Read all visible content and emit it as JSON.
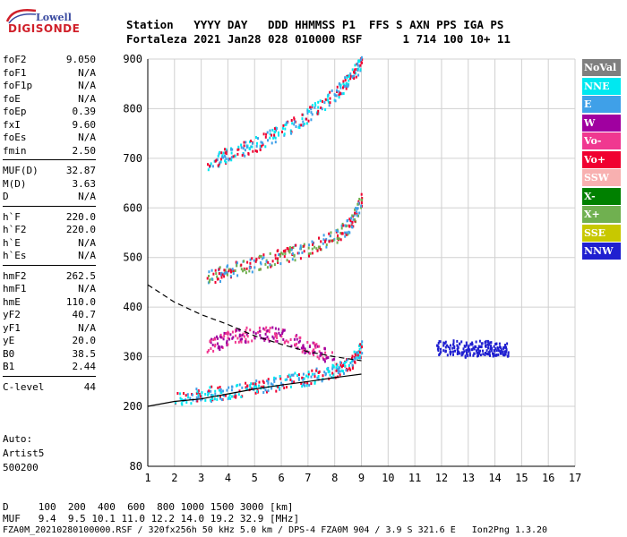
{
  "logo": {
    "top": "Lowell",
    "main": "DIGISONDE"
  },
  "header": {
    "row1": "Station   YYYY DAY   DDD HHMMSS P1  FFS S AXN PPS IGA PS",
    "row2": "Fortaleza 2021 Jan28 028 010000 RSF      1 714 100 10+ 11"
  },
  "params": {
    "group1": [
      {
        "key": "foF2",
        "value": "9.050"
      },
      {
        "key": "foF1",
        "value": "N/A"
      },
      {
        "key": "foF1p",
        "value": "N/A"
      },
      {
        "key": "foE",
        "value": "N/A"
      },
      {
        "key": "foEp",
        "value": "0.39"
      },
      {
        "key": "fxI",
        "value": "9.60"
      },
      {
        "key": "foEs",
        "value": "N/A"
      },
      {
        "key": "fmin",
        "value": "2.50"
      }
    ],
    "group2": [
      {
        "key": "MUF(D)",
        "value": "32.87"
      },
      {
        "key": "M(D)",
        "value": "3.63"
      },
      {
        "key": "D",
        "value": "N/A"
      }
    ],
    "group3": [
      {
        "key": "h`F",
        "value": "220.0"
      },
      {
        "key": "h`F2",
        "value": "220.0"
      },
      {
        "key": "h`E",
        "value": "N/A"
      },
      {
        "key": "h`Es",
        "value": "N/A"
      }
    ],
    "group4": [
      {
        "key": "hmF2",
        "value": "262.5"
      },
      {
        "key": "hmF1",
        "value": "N/A"
      },
      {
        "key": "hmE",
        "value": "110.0"
      },
      {
        "key": "yF2",
        "value": "40.7"
      },
      {
        "key": "yF1",
        "value": "N/A"
      },
      {
        "key": "yE",
        "value": "20.0"
      },
      {
        "key": "B0",
        "value": "38.5"
      },
      {
        "key": "B1",
        "value": "2.44"
      }
    ],
    "group5": [
      {
        "key": "C-level",
        "value": "44"
      }
    ]
  },
  "auto": {
    "line1": "Auto:",
    "line2": "Artist5",
    "line3": "500200"
  },
  "legend": [
    {
      "label": "NoVal",
      "color": "#7f7f7f"
    },
    {
      "label": "NNE",
      "color": "#00e8f0"
    },
    {
      "label": "E",
      "color": "#3fa0e8"
    },
    {
      "label": "W",
      "color": "#a000a0"
    },
    {
      "label": "Vo-",
      "color": "#f03890"
    },
    {
      "label": "Vo+",
      "color": "#f00030"
    },
    {
      "label": "SSW",
      "color": "#f8b0b0"
    },
    {
      "label": "X-",
      "color": "#008000"
    },
    {
      "label": "X+",
      "color": "#70b050"
    },
    {
      "label": "SSE",
      "color": "#c8c800"
    },
    {
      "label": "NNW",
      "color": "#2020d0"
    }
  ],
  "footer": {
    "d_row": "D     100  200  400  600  800 1000 1500 3000 [km]",
    "muf_row": "MUF   9.4  9.5 10.1 11.0 12.2 14.0 19.2 32.9 [MHz]",
    "file_row": "FZA0M_20210280100000.RSF / 320fx256h 50 kHz 5.0 km / DPS-4 FZA0M 904 / 3.9 S 321.6 E   Ion2Png 1.3.20"
  },
  "chart_data": {
    "type": "scatter",
    "title": "",
    "xlabel": "",
    "ylabel": "",
    "x_ticks": [
      1,
      2,
      3,
      4,
      5,
      6,
      7,
      8,
      9,
      10,
      11,
      12,
      13,
      14,
      15,
      16,
      17
    ],
    "y_ticks": [
      80,
      200,
      300,
      400,
      500,
      600,
      700,
      800,
      900
    ],
    "xlim": [
      1,
      17
    ],
    "ylim_upper": [
      200,
      900
    ],
    "ylim_bottom": [
      80,
      200
    ],
    "grid": true,
    "legend_placement": "right",
    "echo_traces": [
      {
        "name": "E",
        "points": [
          [
            2.0,
            215
          ],
          [
            3,
            225
          ],
          [
            4,
            232
          ],
          [
            5,
            240
          ],
          [
            6,
            250
          ],
          [
            7,
            260
          ],
          [
            8,
            275
          ],
          [
            8.6,
            290
          ],
          [
            9.0,
            320
          ]
        ],
        "colors": [
          "#f00030",
          "#3fa0e8",
          "#00e8f0"
        ]
      },
      {
        "name": "2F",
        "points": [
          [
            3.2,
            460
          ],
          [
            4,
            475
          ],
          [
            5,
            490
          ],
          [
            6,
            505
          ],
          [
            7,
            520
          ],
          [
            8,
            545
          ],
          [
            8.6,
            570
          ],
          [
            9.0,
            620
          ]
        ],
        "colors": [
          "#f00030",
          "#3fa0e8",
          "#70b050"
        ]
      },
      {
        "name": "3F",
        "points": [
          [
            3.2,
            690
          ],
          [
            4,
            710
          ],
          [
            5,
            730
          ],
          [
            6,
            755
          ],
          [
            7,
            790
          ],
          [
            8,
            830
          ],
          [
            8.5,
            860
          ],
          [
            9.0,
            895
          ]
        ],
        "colors": [
          "#f00030",
          "#3fa0e8",
          "#00e8f0"
        ]
      },
      {
        "name": "W",
        "points": [
          [
            3.2,
            320
          ],
          [
            4,
            340
          ],
          [
            5,
            350
          ],
          [
            6,
            345
          ],
          [
            7,
            320
          ],
          [
            8,
            300
          ]
        ],
        "colors": [
          "#a000a0",
          "#f03890"
        ]
      },
      {
        "name": "NNW",
        "points": [
          [
            11.8,
            320
          ],
          [
            12.5,
            320
          ],
          [
            13,
            315
          ],
          [
            13.5,
            320
          ],
          [
            14,
            318
          ],
          [
            14.5,
            315
          ]
        ],
        "colors": [
          "#2020d0"
        ]
      }
    ],
    "profile_solid": [
      [
        1,
        200
      ],
      [
        2,
        210
      ],
      [
        3,
        215
      ],
      [
        4,
        225
      ],
      [
        5,
        235
      ],
      [
        6,
        243
      ],
      [
        7,
        250
      ],
      [
        8,
        258
      ],
      [
        9,
        265
      ]
    ],
    "profile_dashed": [
      [
        1,
        445
      ],
      [
        2,
        410
      ],
      [
        3,
        385
      ],
      [
        4,
        365
      ],
      [
        5,
        342
      ],
      [
        6,
        325
      ],
      [
        7,
        310
      ],
      [
        8,
        300
      ],
      [
        9,
        292
      ]
    ]
  }
}
